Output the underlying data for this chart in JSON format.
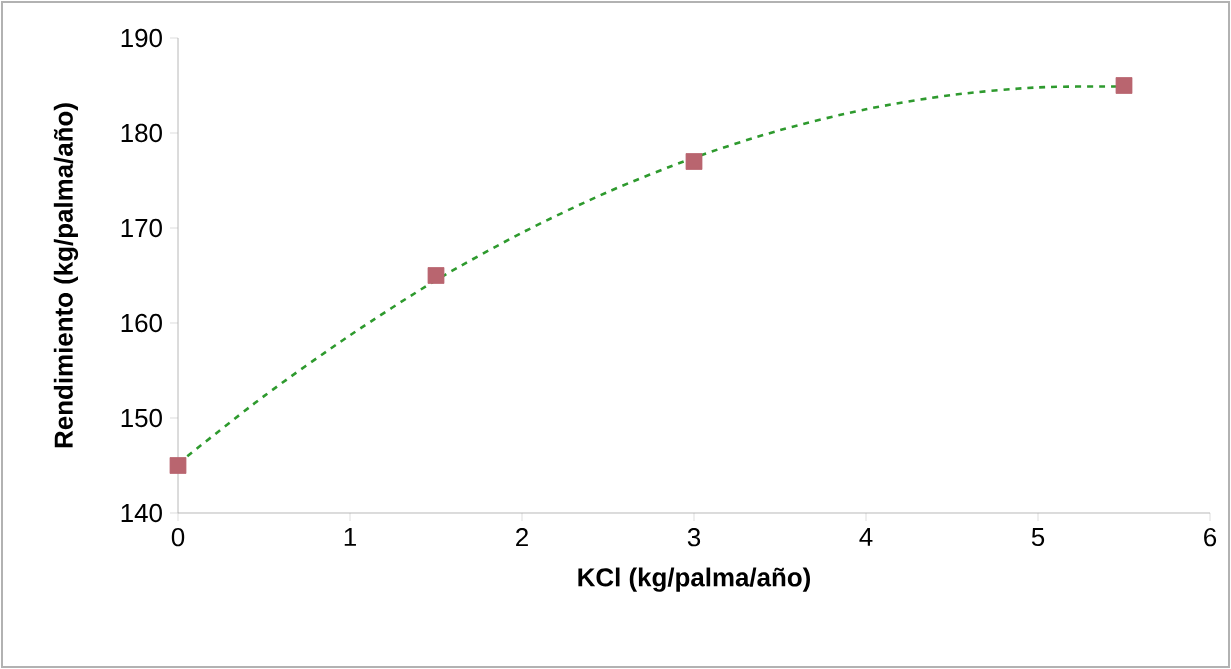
{
  "chart_data": {
    "type": "scatter",
    "xlabel": "KCl (kg/palma/año)",
    "ylabel": "Rendimiento (kg/palma/año)",
    "xlim": [
      0,
      6
    ],
    "xticks": [
      0,
      1,
      2,
      3,
      4,
      5,
      6
    ],
    "ylim": [
      140,
      190
    ],
    "yticks": [
      140,
      150,
      160,
      170,
      180,
      190
    ],
    "grid": false,
    "series": [
      {
        "type": "line",
        "color": "#2e9a2e",
        "line_style": "dashed",
        "marker": "none",
        "x": [
          0,
          0.5,
          1,
          1.5,
          2,
          2.5,
          3,
          3.5,
          4,
          4.5,
          5,
          5.5
        ],
        "values": [
          145.2,
          152.3,
          158.7,
          164.5,
          169.5,
          173.8,
          177.4,
          180.3,
          182.5,
          184.0,
          184.8,
          184.9
        ]
      },
      {
        "color": "#b9656f",
        "marker": "square",
        "x": [
          0,
          1.5,
          3,
          5.5
        ],
        "values": [
          145,
          165,
          177,
          185
        ]
      }
    ]
  }
}
